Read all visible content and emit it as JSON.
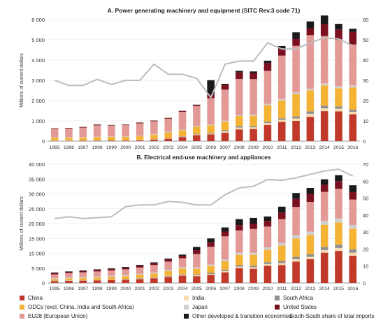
{
  "chart_data": [
    {
      "type": "bar",
      "title": "A. Power generating machinery and equipment (SITC Rev.3 code 71)",
      "ylabel": "Millions of current dollars",
      "ylim": [
        0,
        6000
      ],
      "yticks": [
        "0",
        "1 000",
        "2 000",
        "3 000",
        "4 000",
        "5 000",
        "6 000"
      ],
      "y2lim": [
        0,
        60
      ],
      "y2ticks": [
        "0",
        "10",
        "20",
        "30",
        "40",
        "50",
        "60"
      ],
      "categories": [
        "1995",
        "1996",
        "1997",
        "1998",
        "1999",
        "2000",
        "2001",
        "2002",
        "2003",
        "2004",
        "2005",
        "2006",
        "2007",
        "2008",
        "2009",
        "2010",
        "2011",
        "2012",
        "2013",
        "2014",
        "2015",
        "2016"
      ],
      "series": [
        {
          "name": "China",
          "values": [
            10,
            10,
            20,
            20,
            30,
            30,
            40,
            80,
            120,
            200,
            300,
            330,
            420,
            580,
            600,
            800,
            950,
            1000,
            1200,
            1480,
            1470,
            1330
          ]
        },
        {
          "name": "India",
          "values": [
            10,
            10,
            10,
            10,
            10,
            10,
            10,
            10,
            20,
            20,
            30,
            30,
            60,
            90,
            80,
            90,
            100,
            120,
            150,
            140,
            130,
            120
          ]
        },
        {
          "name": "South Africa",
          "values": [
            10,
            10,
            10,
            10,
            10,
            10,
            10,
            10,
            10,
            20,
            30,
            40,
            60,
            70,
            60,
            70,
            80,
            100,
            120,
            130,
            110,
            100
          ]
        },
        {
          "name": "ODCs (excl. China, India and South Africa)",
          "values": [
            140,
            130,
            140,
            160,
            160,
            160,
            180,
            220,
            280,
            300,
            350,
            380,
            420,
            500,
            510,
            820,
            880,
            1100,
            1040,
            1000,
            900,
            1100
          ]
        },
        {
          "name": "Japan",
          "values": [
            20,
            20,
            20,
            20,
            20,
            20,
            20,
            30,
            30,
            30,
            40,
            40,
            50,
            50,
            50,
            60,
            70,
            80,
            80,
            100,
            100,
            100
          ]
        },
        {
          "name": "EU28 (European Union)",
          "values": [
            420,
            440,
            470,
            560,
            540,
            570,
            620,
            630,
            650,
            880,
            980,
            1300,
            1530,
            1780,
            1760,
            1630,
            2140,
            2300,
            2640,
            2340,
            2300,
            2020
          ]
        },
        {
          "name": "United States",
          "values": [
            20,
            20,
            20,
            30,
            20,
            20,
            30,
            30,
            30,
            40,
            50,
            180,
            250,
            320,
            300,
            380,
            350,
            350,
            340,
            590,
            500,
            620
          ]
        },
        {
          "name": "Other developed & transition economies",
          "values": [
            10,
            10,
            10,
            10,
            10,
            10,
            10,
            10,
            10,
            10,
            20,
            710,
            40,
            80,
            80,
            120,
            120,
            320,
            340,
            420,
            280,
            160
          ]
        }
      ],
      "line": {
        "name": "South-South share of total imports",
        "values": [
          30,
          27.5,
          27.5,
          30.5,
          28,
          30,
          30,
          38,
          33,
          33,
          31,
          21.5,
          38,
          39.5,
          39.5,
          48.5,
          45.5,
          45.5,
          48.5,
          51,
          50.5,
          47
        ]
      }
    },
    {
      "type": "bar",
      "title": "B. Electrical end-use machinery and appliances",
      "ylabel": "Millions of current dollars",
      "ylim": [
        0,
        40000
      ],
      "yticks": [
        "0",
        "5 000",
        "10 000",
        "15 000",
        "20 000",
        "25 000",
        "30 000",
        "35 000",
        "40 000"
      ],
      "y2lim": [
        0,
        70
      ],
      "y2ticks": [
        "0",
        "10",
        "20",
        "30",
        "40",
        "50",
        "60",
        "70"
      ],
      "categories": [
        "1995",
        "1996",
        "1997",
        "1998",
        "1999",
        "2000",
        "2001",
        "2002",
        "2003",
        "2004",
        "2005",
        "2006",
        "2007",
        "2008",
        "2009",
        "2010",
        "2011",
        "2012",
        "2013",
        "2014",
        "2015",
        "2016"
      ],
      "series": [
        {
          "name": "China",
          "values": [
            600,
            700,
            800,
            900,
            1000,
            1100,
            1300,
            1600,
            2000,
            2500,
            2300,
            2700,
            3600,
            5000,
            4800,
            5800,
            6000,
            7200,
            8000,
            10200,
            10800,
            9200
          ]
        },
        {
          "name": "India",
          "values": [
            100,
            100,
            100,
            100,
            100,
            100,
            150,
            150,
            200,
            250,
            300,
            350,
            400,
            500,
            500,
            600,
            700,
            800,
            800,
            900,
            1000,
            1000
          ]
        },
        {
          "name": "South Africa",
          "values": [
            100,
            100,
            100,
            100,
            100,
            100,
            150,
            150,
            200,
            250,
            300,
            350,
            400,
            500,
            500,
            600,
            700,
            800,
            900,
            1000,
            1100,
            1100
          ]
        },
        {
          "name": "ODCs (excl. China, India and South Africa)",
          "values": [
            500,
            600,
            700,
            800,
            900,
            1000,
            1200,
            1300,
            1600,
            1900,
            1900,
            2300,
            2900,
            3500,
            3700,
            4200,
            5200,
            6200,
            6500,
            7500,
            7500,
            7000
          ]
        },
        {
          "name": "Japan",
          "values": [
            300,
            300,
            300,
            300,
            300,
            300,
            300,
            350,
            400,
            450,
            450,
            500,
            600,
            700,
            700,
            800,
            900,
            1100,
            1100,
            1300,
            1300,
            1200
          ]
        },
        {
          "name": "EU28 (European Union)",
          "values": [
            1300,
            1500,
            1600,
            1700,
            1800,
            2000,
            2100,
            2500,
            2800,
            3000,
            4500,
            6000,
            7800,
            7500,
            8000,
            7000,
            8000,
            9500,
            10000,
            9800,
            10000,
            8600
          ]
        },
        {
          "name": "United States",
          "values": [
            400,
            400,
            400,
            500,
            500,
            500,
            600,
            600,
            700,
            800,
            1300,
            1500,
            1600,
            1800,
            1800,
            1900,
            2200,
            2700,
            2700,
            2400,
            2600,
            2500
          ]
        },
        {
          "name": "Other developed & transition economies",
          "values": [
            200,
            200,
            200,
            200,
            200,
            300,
            300,
            300,
            300,
            400,
            1100,
            1300,
            1400,
            2000,
            1900,
            1500,
            2000,
            2000,
            2000,
            1800,
            2000,
            2300
          ]
        }
      ],
      "line": {
        "name": "South-South share of total imports",
        "values": [
          38,
          39,
          38,
          38.5,
          39,
          45,
          46,
          46,
          48,
          47.5,
          46,
          46,
          52,
          56,
          57,
          61,
          60.5,
          62,
          64,
          66,
          67,
          63
        ]
      }
    }
  ],
  "colors": {
    "China": "#c0392b",
    "India": "#f7dcb1",
    "South Africa": "#8f8f8f",
    "ODCs (excl. China, India and South Africa)": "#f5b335",
    "Japan": "#cfcfcf",
    "EU28 (European Union)": "#e39a97",
    "United States": "#7b1020",
    "Other developed & transition economies": "#1a1a1a",
    "line": "#bdbdbd"
  },
  "legend": [
    {
      "key": "China",
      "label": "China"
    },
    {
      "key": "India",
      "label": "India"
    },
    {
      "key": "South Africa",
      "label": "South Africa"
    },
    {
      "key": "ODCs (excl. China, India and South Africa)",
      "label": "ODCs (excl. China, India and South Africa)"
    },
    {
      "key": "Japan",
      "label": "Japan"
    },
    {
      "key": "United States",
      "label": "United States"
    },
    {
      "key": "EU28 (European Union)",
      "label": "EU28 (European Union)"
    },
    {
      "key": "Other developed & transition economies",
      "label": "Other developed & transition economies"
    },
    {
      "key": "line",
      "label": "South-South share of total imports"
    }
  ]
}
